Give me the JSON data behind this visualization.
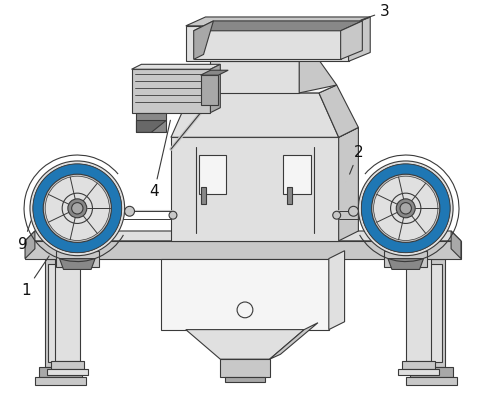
{
  "bg_color": "#ffffff",
  "line_color": "#3a3a3a",
  "fill_white": "#f5f5f5",
  "fill_light": "#e0e0e0",
  "fill_mid": "#c8c8c8",
  "fill_dark": "#a8a8a8",
  "fill_darker": "#888888",
  "fill_darkest": "#686868",
  "label_fontsize": 11,
  "figsize": [
    4.86,
    4.03
  ],
  "dpi": 100
}
